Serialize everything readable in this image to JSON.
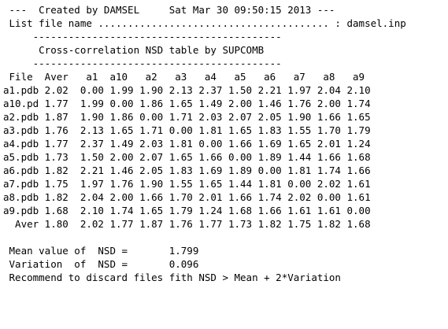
{
  "lines": [
    " ---  Created by DAMSEL     Sat Mar 30 09:50:15 2013 ---",
    " List file name ....................................... : damsel.inp",
    "     ------------------------------------------",
    "      Cross-correlation NSD table by SUPCOMB",
    "     ------------------------------------------",
    " File  Aver   a1  a10   a2   a3   a4   a5   a6   a7   a8   a9",
    "a1.pdb 2.02  0.00 1.99 1.90 2.13 2.37 1.50 2.21 1.97 2.04 2.10",
    "a10.pd 1.77  1.99 0.00 1.86 1.65 1.49 2.00 1.46 1.76 2.00 1.74",
    "a2.pdb 1.87  1.90 1.86 0.00 1.71 2.03 2.07 2.05 1.90 1.66 1.65",
    "a3.pdb 1.76  2.13 1.65 1.71 0.00 1.81 1.65 1.83 1.55 1.70 1.79",
    "a4.pdb 1.77  2.37 1.49 2.03 1.81 0.00 1.66 1.69 1.65 2.01 1.24",
    "a5.pdb 1.73  1.50 2.00 2.07 1.65 1.66 0.00 1.89 1.44 1.66 1.68",
    "a6.pdb 1.82  2.21 1.46 2.05 1.83 1.69 1.89 0.00 1.81 1.74 1.66",
    "a7.pdb 1.75  1.97 1.76 1.90 1.55 1.65 1.44 1.81 0.00 2.02 1.61",
    "a8.pdb 1.82  2.04 2.00 1.66 1.70 2.01 1.66 1.74 2.02 0.00 1.61",
    "a9.pdb 1.68  2.10 1.74 1.65 1.79 1.24 1.68 1.66 1.61 1.61 0.00",
    "  Aver 1.80  2.02 1.77 1.87 1.76 1.77 1.73 1.82 1.75 1.82 1.68",
    "",
    " Mean value of  NSD =       1.799",
    " Variation  of  NSD =       0.096",
    " Recommend to discard files fith NSD > Mean + 2*Variation"
  ]
}
